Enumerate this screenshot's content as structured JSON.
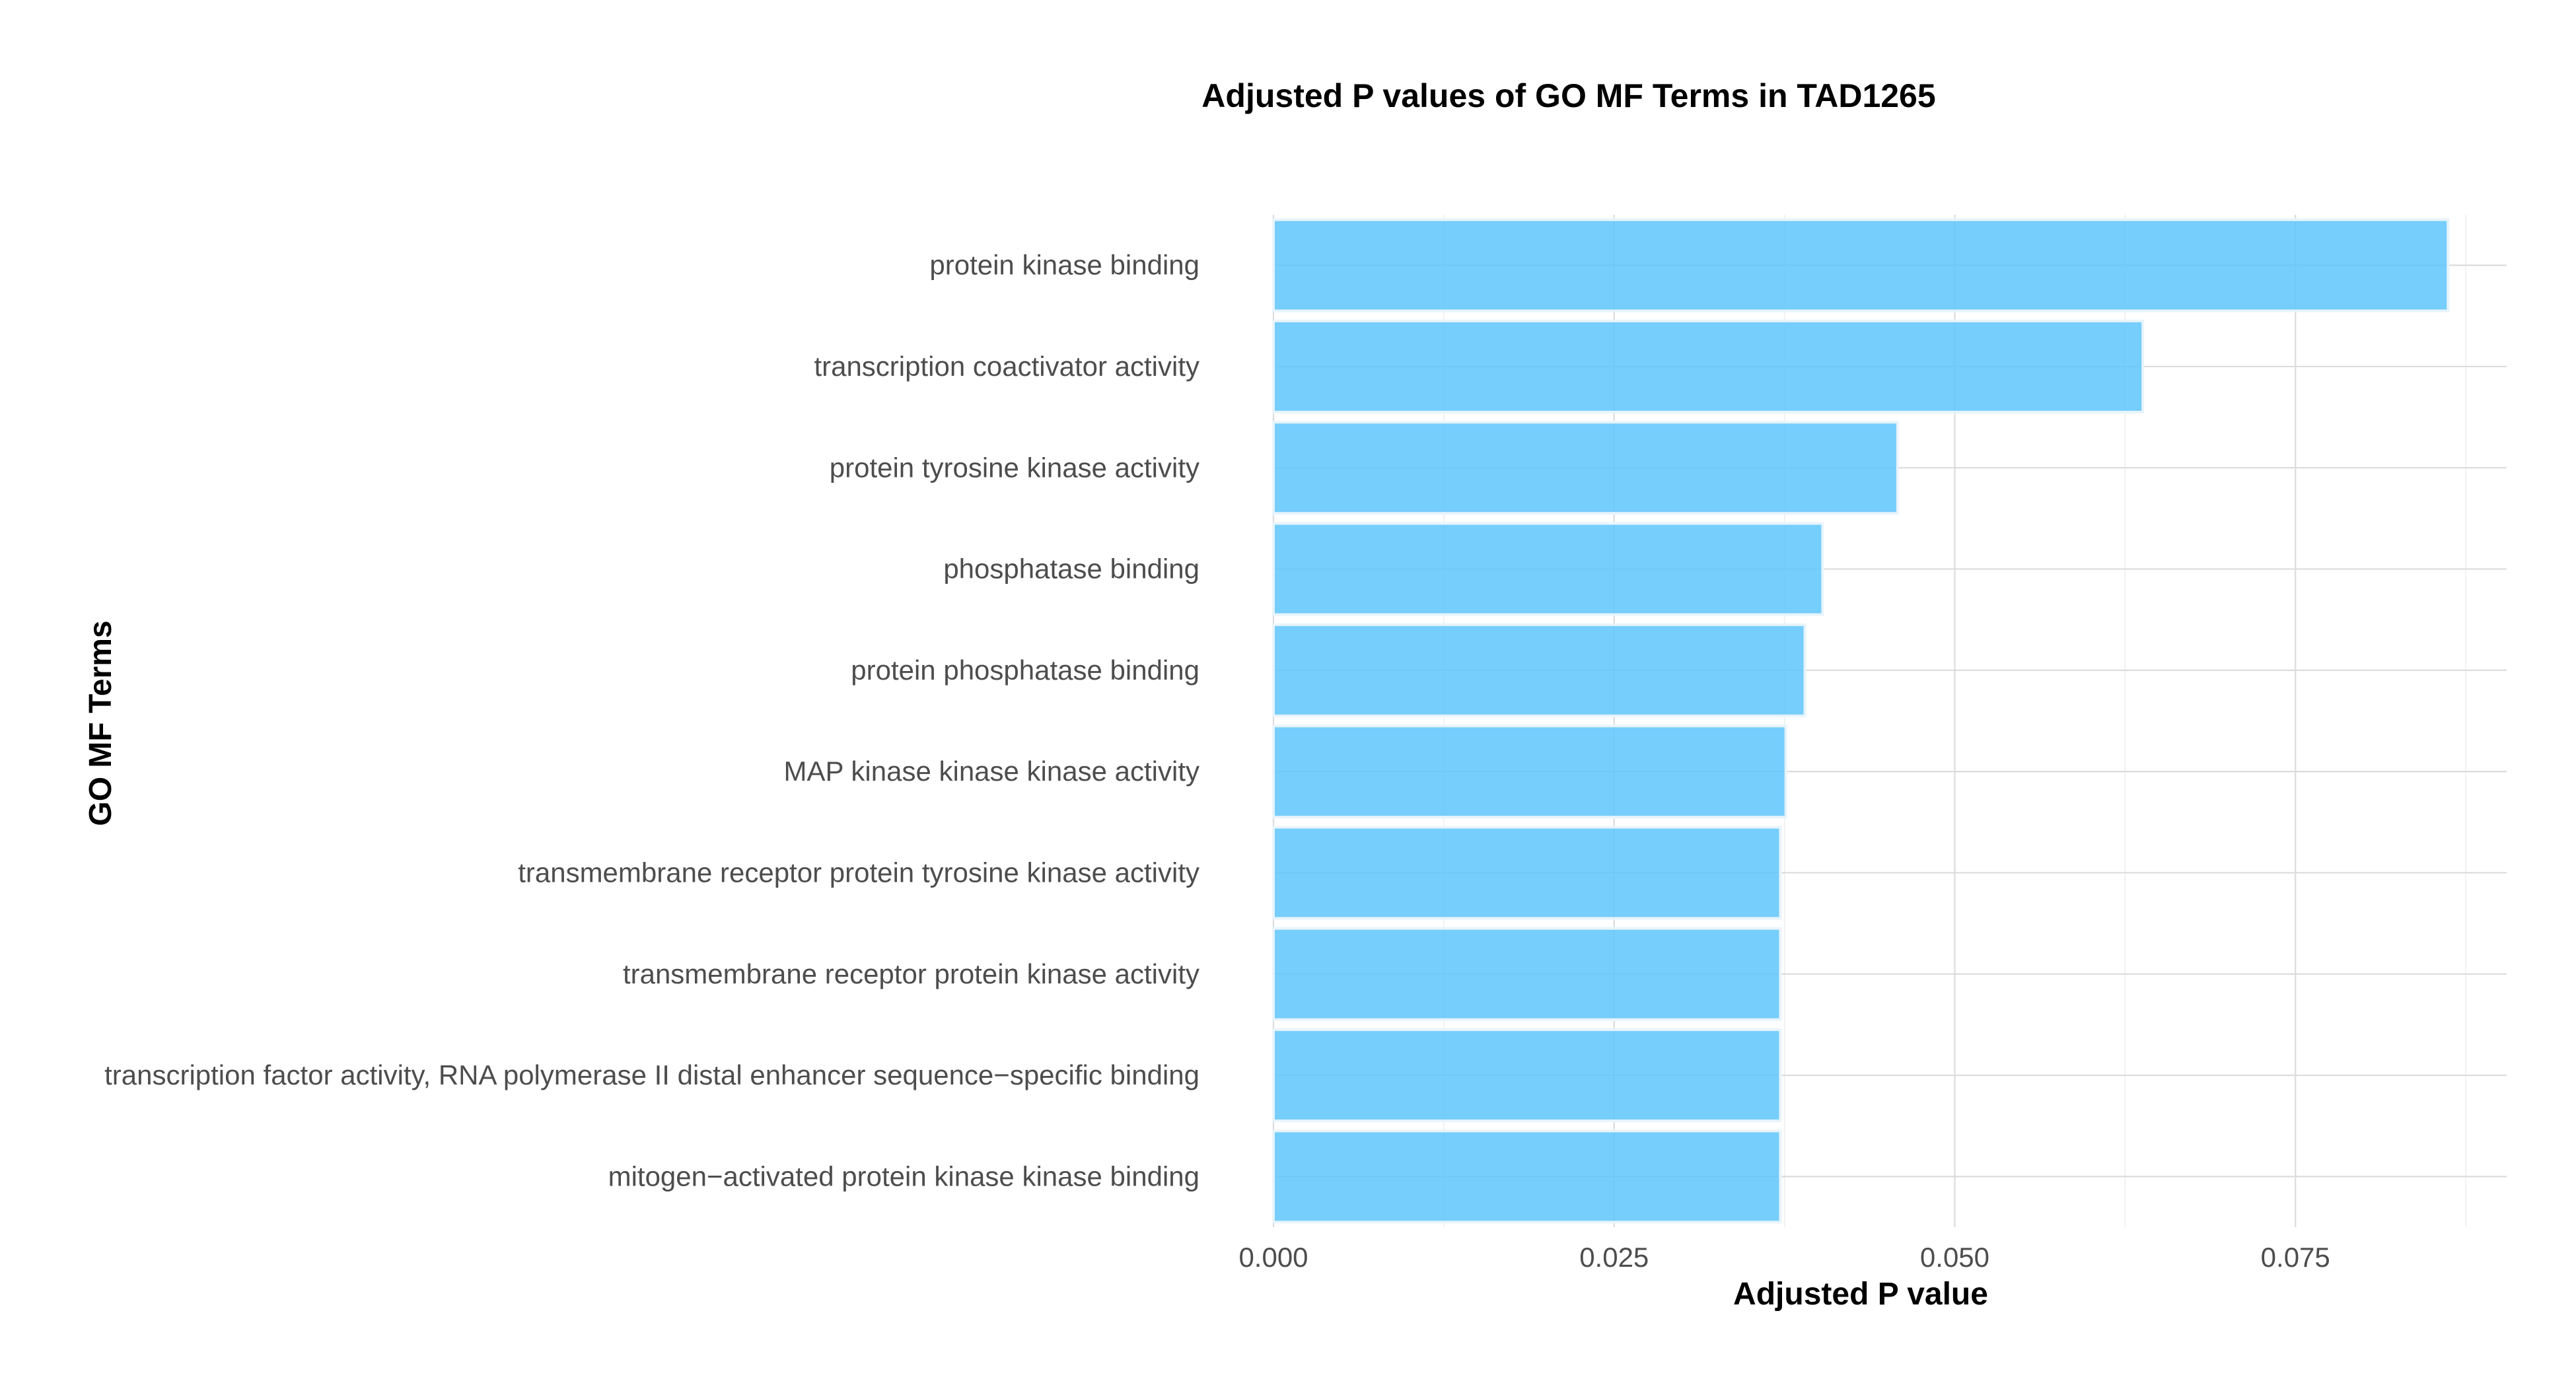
{
  "chart_data": {
    "type": "bar",
    "orientation": "horizontal",
    "title": "Adjusted P values of GO MF Terms in TAD1265",
    "xlabel": "Adjusted P value",
    "ylabel": "GO MF Terms",
    "categories": [
      "protein kinase binding",
      "transcription coactivator activity",
      "protein tyrosine kinase activity",
      "phosphatase binding",
      "protein phosphatase binding",
      "MAP kinase kinase kinase activity",
      "transmembrane receptor protein tyrosine kinase activity",
      "transmembrane receptor protein kinase activity",
      "transcription factor activity, RNA polymerase II distal enhancer sequence−specific binding",
      "mitogen−activated protein kinase kinase binding"
    ],
    "values": [
      0.0862,
      0.0638,
      0.0458,
      0.0403,
      0.039,
      0.0376,
      0.0372,
      0.0372,
      0.0372,
      0.0372
    ],
    "xlim": [
      0,
      0.0905
    ],
    "x_ticks": [
      0,
      0.025,
      0.05,
      0.075
    ],
    "x_tick_labels": [
      "0.000",
      "0.025",
      "0.050",
      "0.075"
    ],
    "grid": true,
    "legend": "none",
    "colors": {
      "bar_fill": "#5ec6fb",
      "bar_edge": "#e8f4fc",
      "grid": "#dcdcdc"
    }
  }
}
